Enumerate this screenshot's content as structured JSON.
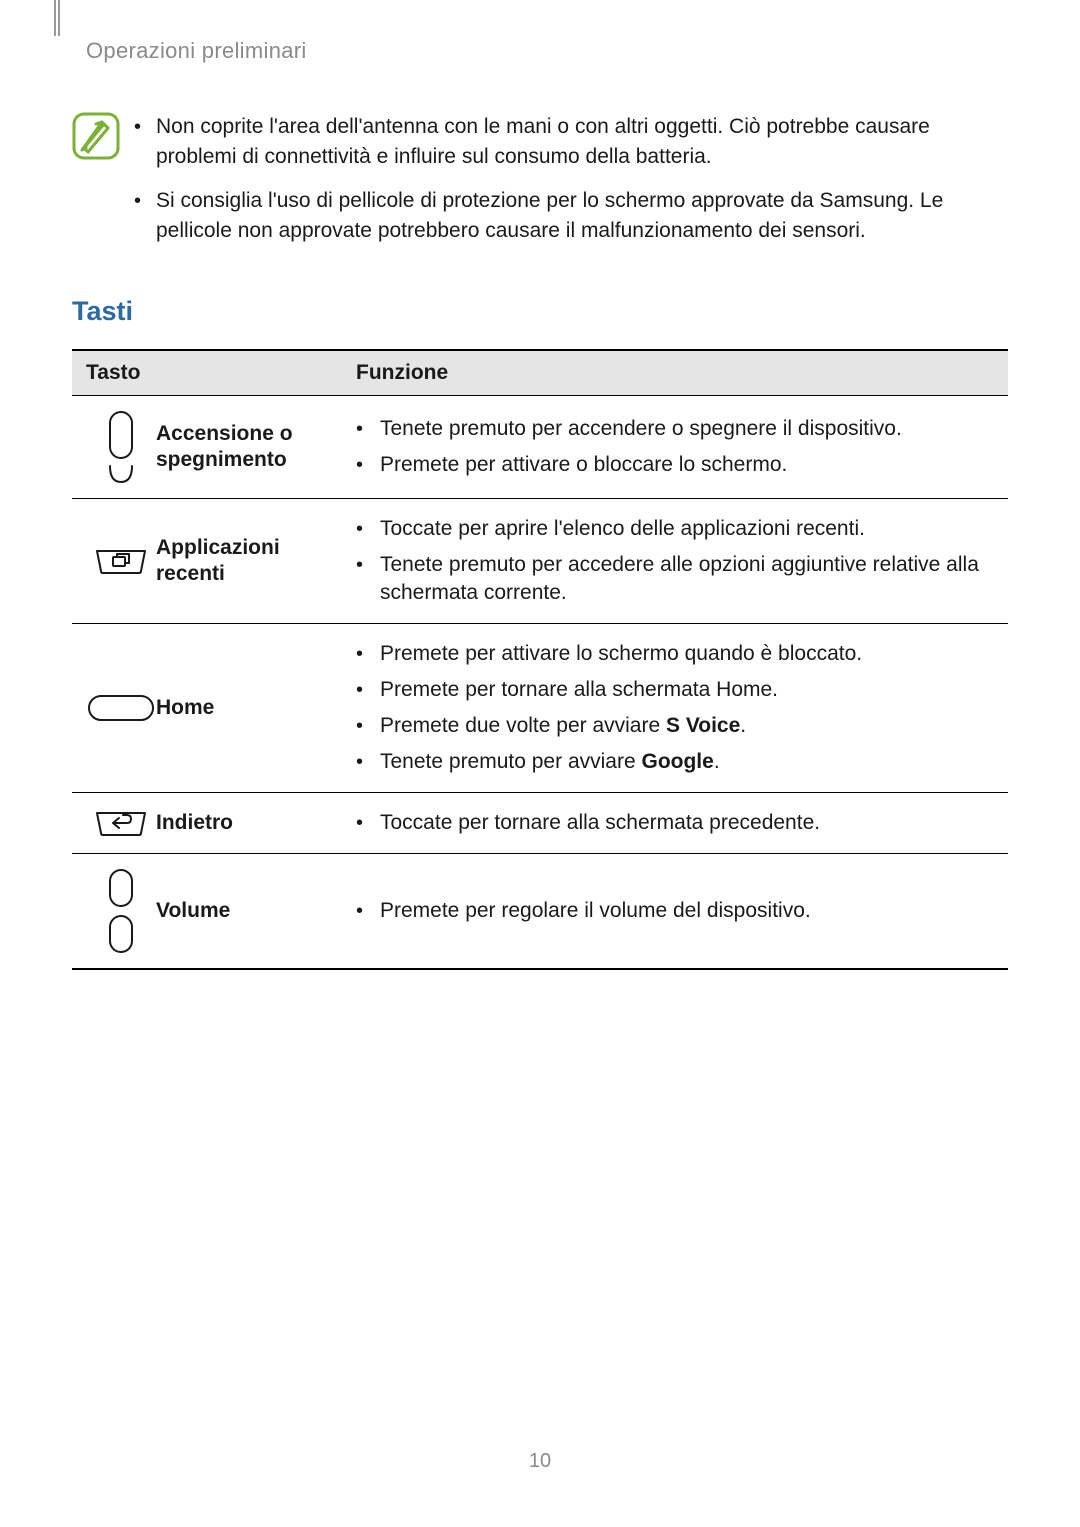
{
  "header": {
    "breadcrumb": "Operazioni preliminari"
  },
  "note": {
    "items": [
      "Non coprite l'area dell'antenna con le mani o con altri oggetti. Ciò potrebbe causare problemi di connettività e influire sul consumo della batteria.",
      "Si consiglia l'uso di pellicole di protezione per lo schermo approvate da Samsung. Le pellicole non approvate potrebbero causare il malfunzionamento dei sensori."
    ]
  },
  "colors": {
    "section_heading": "#2b6aa3",
    "icon_green": "#7bb135",
    "header_gray": "#8a8a8a",
    "table_header_bg": "#e5e5e5",
    "bullet": "#1a1a1a"
  },
  "section": {
    "title": "Tasti"
  },
  "table": {
    "columns": [
      "Tasto",
      "Funzione"
    ],
    "rows": [
      {
        "icon": "power",
        "label": "Accensione o spegnimento",
        "functions": [
          [
            {
              "t": "Tenete premuto per accendere o spegnere il dispositivo."
            }
          ],
          [
            {
              "t": "Premete per attivare o bloccare lo schermo."
            }
          ]
        ]
      },
      {
        "icon": "recent",
        "label": "Applicazioni recenti",
        "functions": [
          [
            {
              "t": "Toccate per aprire l'elenco delle applicazioni recenti."
            }
          ],
          [
            {
              "t": "Tenete premuto per accedere alle opzioni aggiuntive relative alla schermata corrente."
            }
          ]
        ]
      },
      {
        "icon": "home",
        "label": "Home",
        "functions": [
          [
            {
              "t": "Premete per attivare lo schermo quando è bloccato."
            }
          ],
          [
            {
              "t": "Premete per tornare alla schermata Home."
            }
          ],
          [
            {
              "t": "Premete due volte per avviare "
            },
            {
              "t": "S Voice",
              "b": true
            },
            {
              "t": "."
            }
          ],
          [
            {
              "t": "Tenete premuto per avviare "
            },
            {
              "t": "Google",
              "b": true
            },
            {
              "t": "."
            }
          ]
        ]
      },
      {
        "icon": "back",
        "label": "Indietro",
        "functions": [
          [
            {
              "t": "Toccate per tornare alla schermata precedente."
            }
          ]
        ]
      },
      {
        "icon": "volume",
        "label": "Volume",
        "functions": [
          [
            {
              "t": "Premete per regolare il volume del dispositivo."
            }
          ]
        ]
      }
    ]
  },
  "page_number": "10"
}
